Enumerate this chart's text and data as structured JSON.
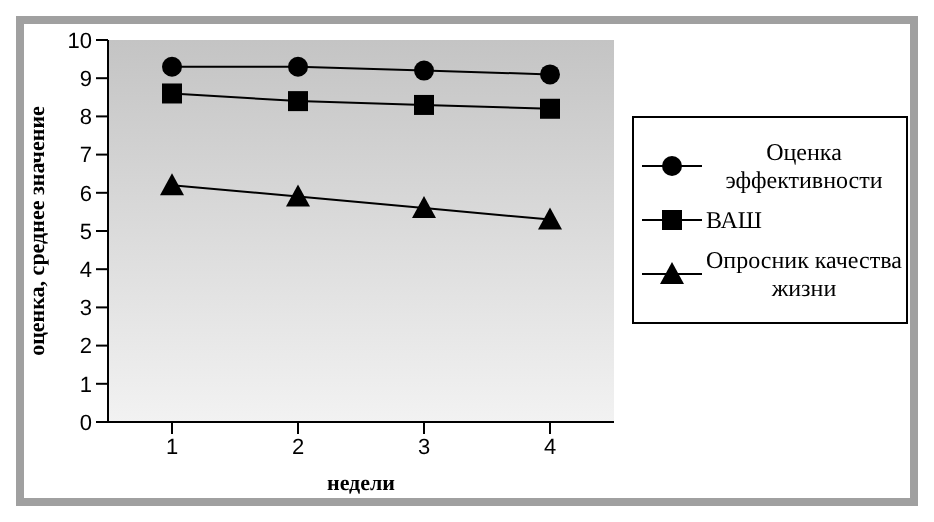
{
  "chart_data": {
    "type": "line",
    "xlabel": "недели",
    "ylabel": "оценка, среднее значение",
    "categories": [
      "1",
      "2",
      "3",
      "4"
    ],
    "series": [
      {
        "name": "Оценка эффективности",
        "color": "#000000",
        "marker": "circle",
        "values": [
          9.3,
          9.3,
          9.2,
          9.1
        ]
      },
      {
        "name": "ВАШ",
        "color": "#000000",
        "marker": "square",
        "values": [
          8.6,
          8.4,
          8.3,
          8.2
        ]
      },
      {
        "name": "Опросник качества жизни",
        "color": "#000000",
        "marker": "triangle",
        "values": [
          6.2,
          5.9,
          5.6,
          5.3
        ]
      }
    ],
    "ylim": [
      0,
      10
    ],
    "yticks": [
      0,
      1,
      2,
      3,
      4,
      5,
      6,
      7,
      8,
      9,
      10
    ],
    "grid": false,
    "legend": "right",
    "line_style": "solid"
  }
}
